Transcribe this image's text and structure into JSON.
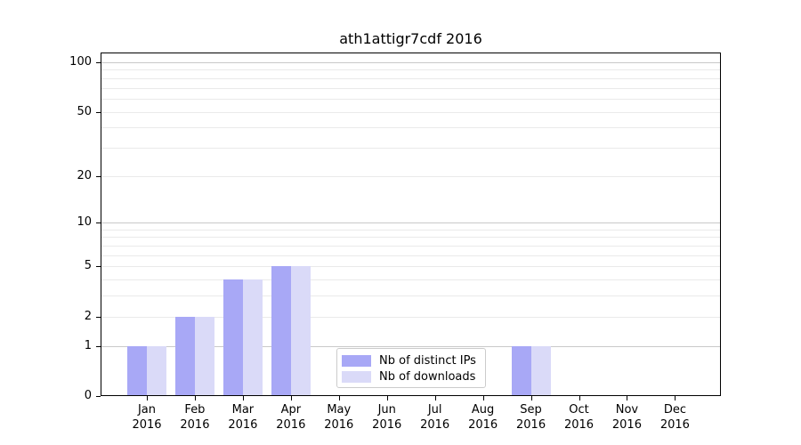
{
  "chart_data": {
    "type": "bar",
    "title": "ath1attigr7cdf 2016",
    "categories": [
      "Jan 2016",
      "Feb 2016",
      "Mar 2016",
      "Apr 2016",
      "May 2016",
      "Jun 2016",
      "Jul 2016",
      "Aug 2016",
      "Sep 2016",
      "Oct 2016",
      "Nov 2016",
      "Dec 2016"
    ],
    "x_tick_labels": [
      [
        "Jan",
        "2016"
      ],
      [
        "Feb",
        "2016"
      ],
      [
        "Mar",
        "2016"
      ],
      [
        "Apr",
        "2016"
      ],
      [
        "May",
        "2016"
      ],
      [
        "Jun",
        "2016"
      ],
      [
        "Jul",
        "2016"
      ],
      [
        "Aug",
        "2016"
      ],
      [
        "Sep",
        "2016"
      ],
      [
        "Oct",
        "2016"
      ],
      [
        "Nov",
        "2016"
      ],
      [
        "Dec",
        "2016"
      ]
    ],
    "series": [
      {
        "name": "Nb of distinct IPs",
        "color": "#a8a8f6",
        "values": [
          1,
          2,
          4,
          5,
          0,
          0,
          0,
          0,
          1,
          0,
          0,
          0
        ]
      },
      {
        "name": "Nb of downloads",
        "color": "#dadaf8",
        "values": [
          1,
          2,
          4,
          5,
          0,
          0,
          0,
          0,
          1,
          0,
          0,
          0
        ]
      }
    ],
    "y_scale": "log1p",
    "y_ticks": [
      0,
      1,
      2,
      5,
      10,
      20,
      50,
      100
    ],
    "ylim": [
      0,
      100
    ],
    "grid": "horizontal major+minor",
    "legend_position": "lower center"
  },
  "colors": {
    "grid_decade": "#c9c9c9",
    "grid_minor": "#eaeaea",
    "spine": "#000000",
    "legend_border": "#cccccc",
    "text": "#000000",
    "background": "#ffffff"
  }
}
